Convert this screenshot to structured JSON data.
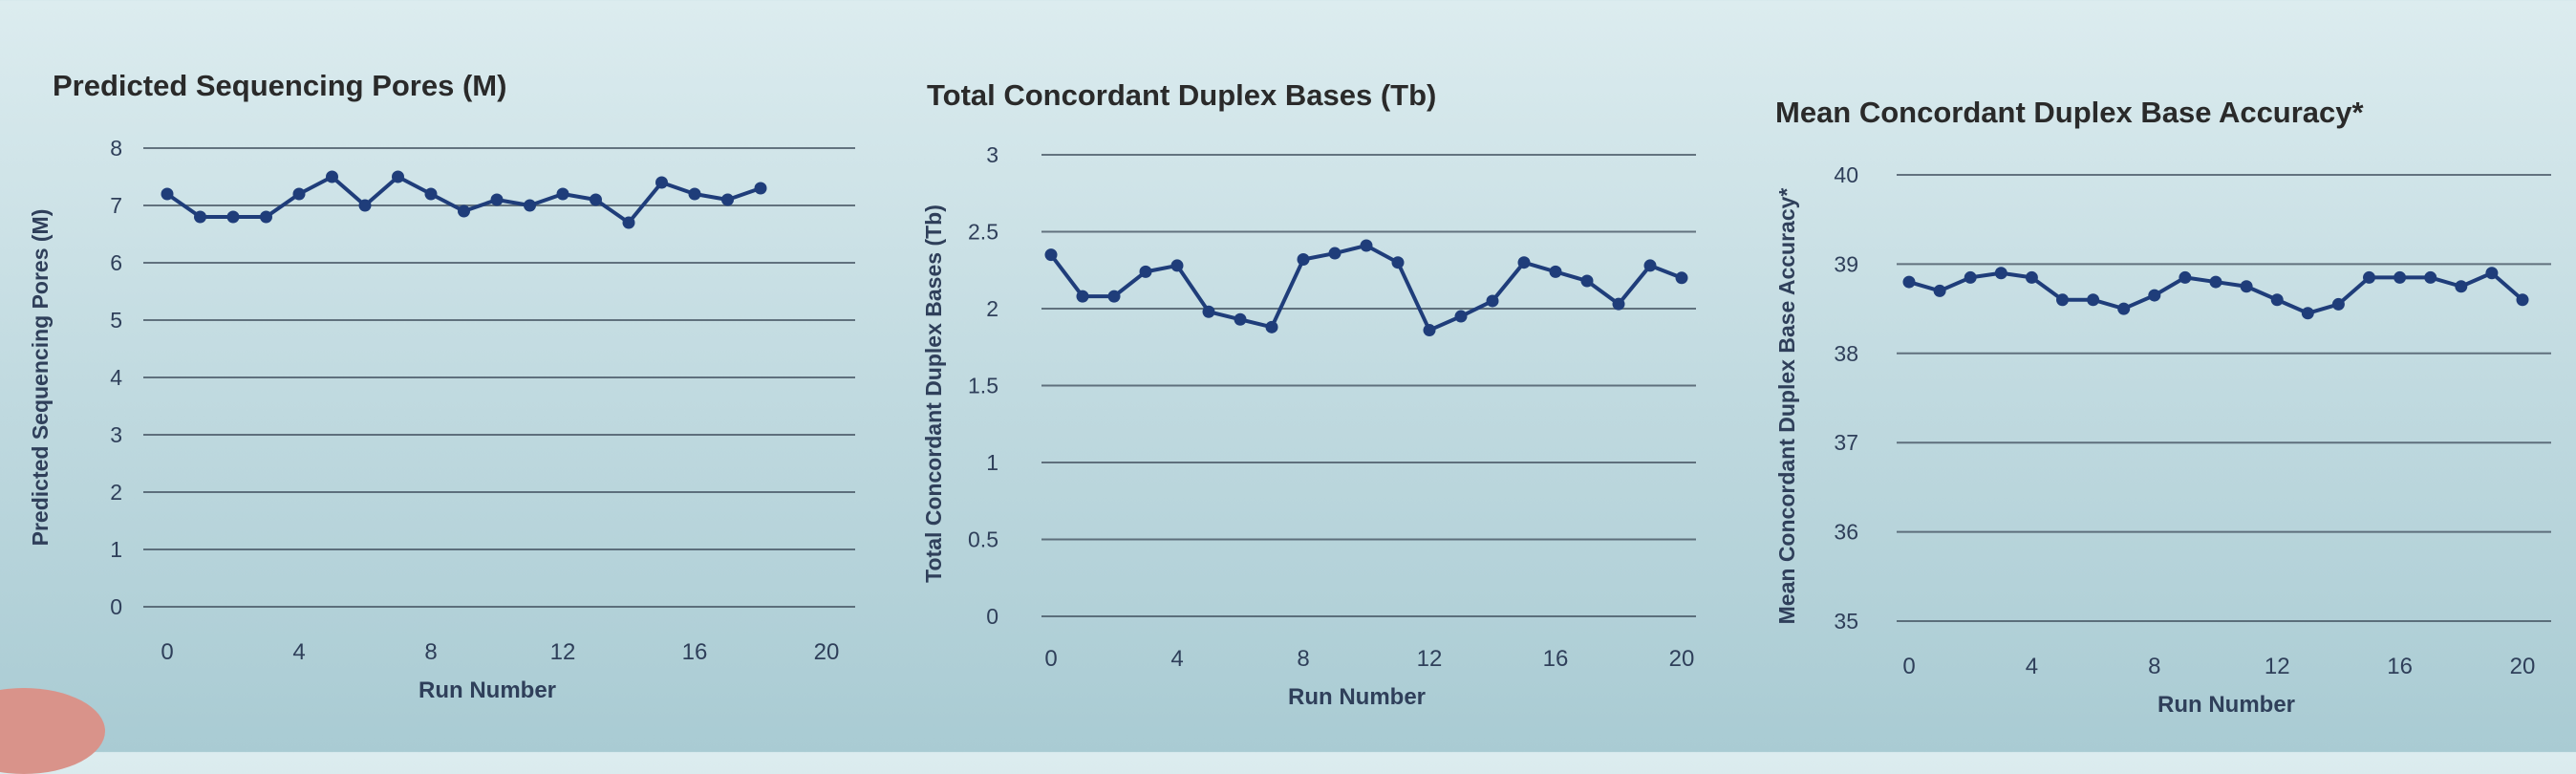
{
  "chart_data": [
    {
      "type": "line",
      "title": "Predicted Sequencing Pores (M)",
      "xlabel": "Run Number",
      "ylabel": "Predicted Sequencing Pores (M)",
      "xlim": [
        0,
        20
      ],
      "ylim": [
        0,
        8
      ],
      "xticks": [
        0,
        4,
        8,
        12,
        16,
        20
      ],
      "yticks": [
        0,
        1,
        2,
        3,
        4,
        5,
        6,
        7,
        8
      ],
      "ytick_labels": [
        "0",
        "1",
        "2",
        "3",
        "4",
        "5",
        "6",
        "7",
        "8"
      ],
      "grid": "horizontal",
      "color": "#1f3d7a",
      "x": [
        0,
        1,
        2,
        3,
        4,
        5,
        6,
        7,
        8,
        9,
        10,
        11,
        12,
        13,
        14,
        15,
        16,
        17,
        18
      ],
      "y": [
        7.2,
        6.8,
        6.8,
        6.8,
        7.2,
        7.5,
        7.0,
        7.5,
        7.2,
        6.9,
        7.1,
        7.0,
        7.2,
        7.1,
        6.7,
        7.4,
        7.2,
        7.1,
        7.3
      ]
    },
    {
      "type": "line",
      "title": "Total Concordant Duplex Bases (Tb)",
      "xlabel": "Run Number",
      "ylabel": "Total Concordant Duplex Bases (Tb)",
      "xlim": [
        0,
        20
      ],
      "ylim": [
        0,
        3
      ],
      "xticks": [
        0,
        4,
        8,
        12,
        16,
        20
      ],
      "yticks": [
        0,
        0.5,
        1,
        1.5,
        2,
        2.5,
        3
      ],
      "ytick_labels": [
        "0",
        "0.5",
        "1",
        "1.5",
        "2",
        "2.5",
        "3"
      ],
      "grid": "horizontal",
      "color": "#1f3d7a",
      "x": [
        0,
        1,
        2,
        3,
        4,
        5,
        6,
        7,
        8,
        9,
        10,
        11,
        12,
        13,
        14,
        15,
        16,
        17,
        18,
        19,
        20
      ],
      "y": [
        2.35,
        2.08,
        2.08,
        2.24,
        2.28,
        1.98,
        1.93,
        1.88,
        2.32,
        2.36,
        2.41,
        2.3,
        1.86,
        1.95,
        2.05,
        2.3,
        2.24,
        2.18,
        2.03,
        2.28,
        2.2
      ]
    },
    {
      "type": "line",
      "title": "Mean Concordant Duplex Base Accuracy*",
      "xlabel": "Run Number",
      "ylabel": "Mean Concordant Duplex Base Accuracy*",
      "xlim": [
        0,
        20
      ],
      "ylim": [
        35,
        40
      ],
      "xticks": [
        0,
        4,
        8,
        12,
        16,
        20
      ],
      "yticks": [
        35,
        36,
        37,
        38,
        39,
        40
      ],
      "ytick_labels": [
        "35",
        "36",
        "37",
        "38",
        "39",
        "40"
      ],
      "grid": "horizontal",
      "color": "#1f3d7a",
      "x": [
        0,
        1,
        2,
        3,
        4,
        5,
        6,
        7,
        8,
        9,
        10,
        11,
        12,
        13,
        14,
        15,
        16,
        17,
        18,
        19,
        20
      ],
      "y": [
        38.8,
        38.7,
        38.85,
        38.9,
        38.85,
        38.6,
        38.6,
        38.5,
        38.65,
        38.85,
        38.8,
        38.75,
        38.6,
        38.45,
        38.55,
        38.85,
        38.85,
        38.85,
        38.75,
        38.9,
        38.6
      ]
    }
  ]
}
